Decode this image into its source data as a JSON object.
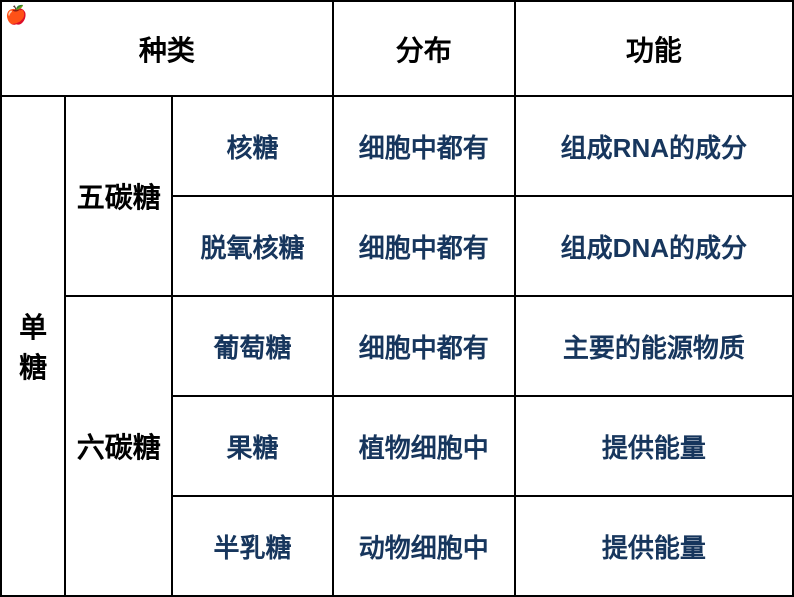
{
  "decoration": {
    "apple": "🍎"
  },
  "headers": {
    "category": "种类",
    "distribution": "分布",
    "function": "功能"
  },
  "categories": {
    "monosaccharide": "单糖",
    "pentose": "五碳糖",
    "hexose": "六碳糖"
  },
  "rows": [
    {
      "name": "核糖",
      "distribution": "细胞中都有",
      "function": "组成RNA的成分"
    },
    {
      "name": "脱氧核糖",
      "distribution": "细胞中都有",
      "function": "组成DNA的成分"
    },
    {
      "name": "葡萄糖",
      "distribution": "细胞中都有",
      "function": "主要的能源物质"
    },
    {
      "name": "果糖",
      "distribution": "植物细胞中",
      "function": "提供能量"
    },
    {
      "name": "半乳糖",
      "distribution": "动物细胞中",
      "function": "提供能量"
    }
  ],
  "styling": {
    "header_color": "#000000",
    "data_color": "#17365d",
    "border_color": "#000000",
    "background_color": "#ffffff",
    "header_fontsize": 28,
    "data_fontsize": 26,
    "font_weight": "bold"
  },
  "layout": {
    "columns": [
      60,
      100,
      150,
      170,
      260
    ],
    "header_row_height": 95,
    "data_row_height": 100
  }
}
